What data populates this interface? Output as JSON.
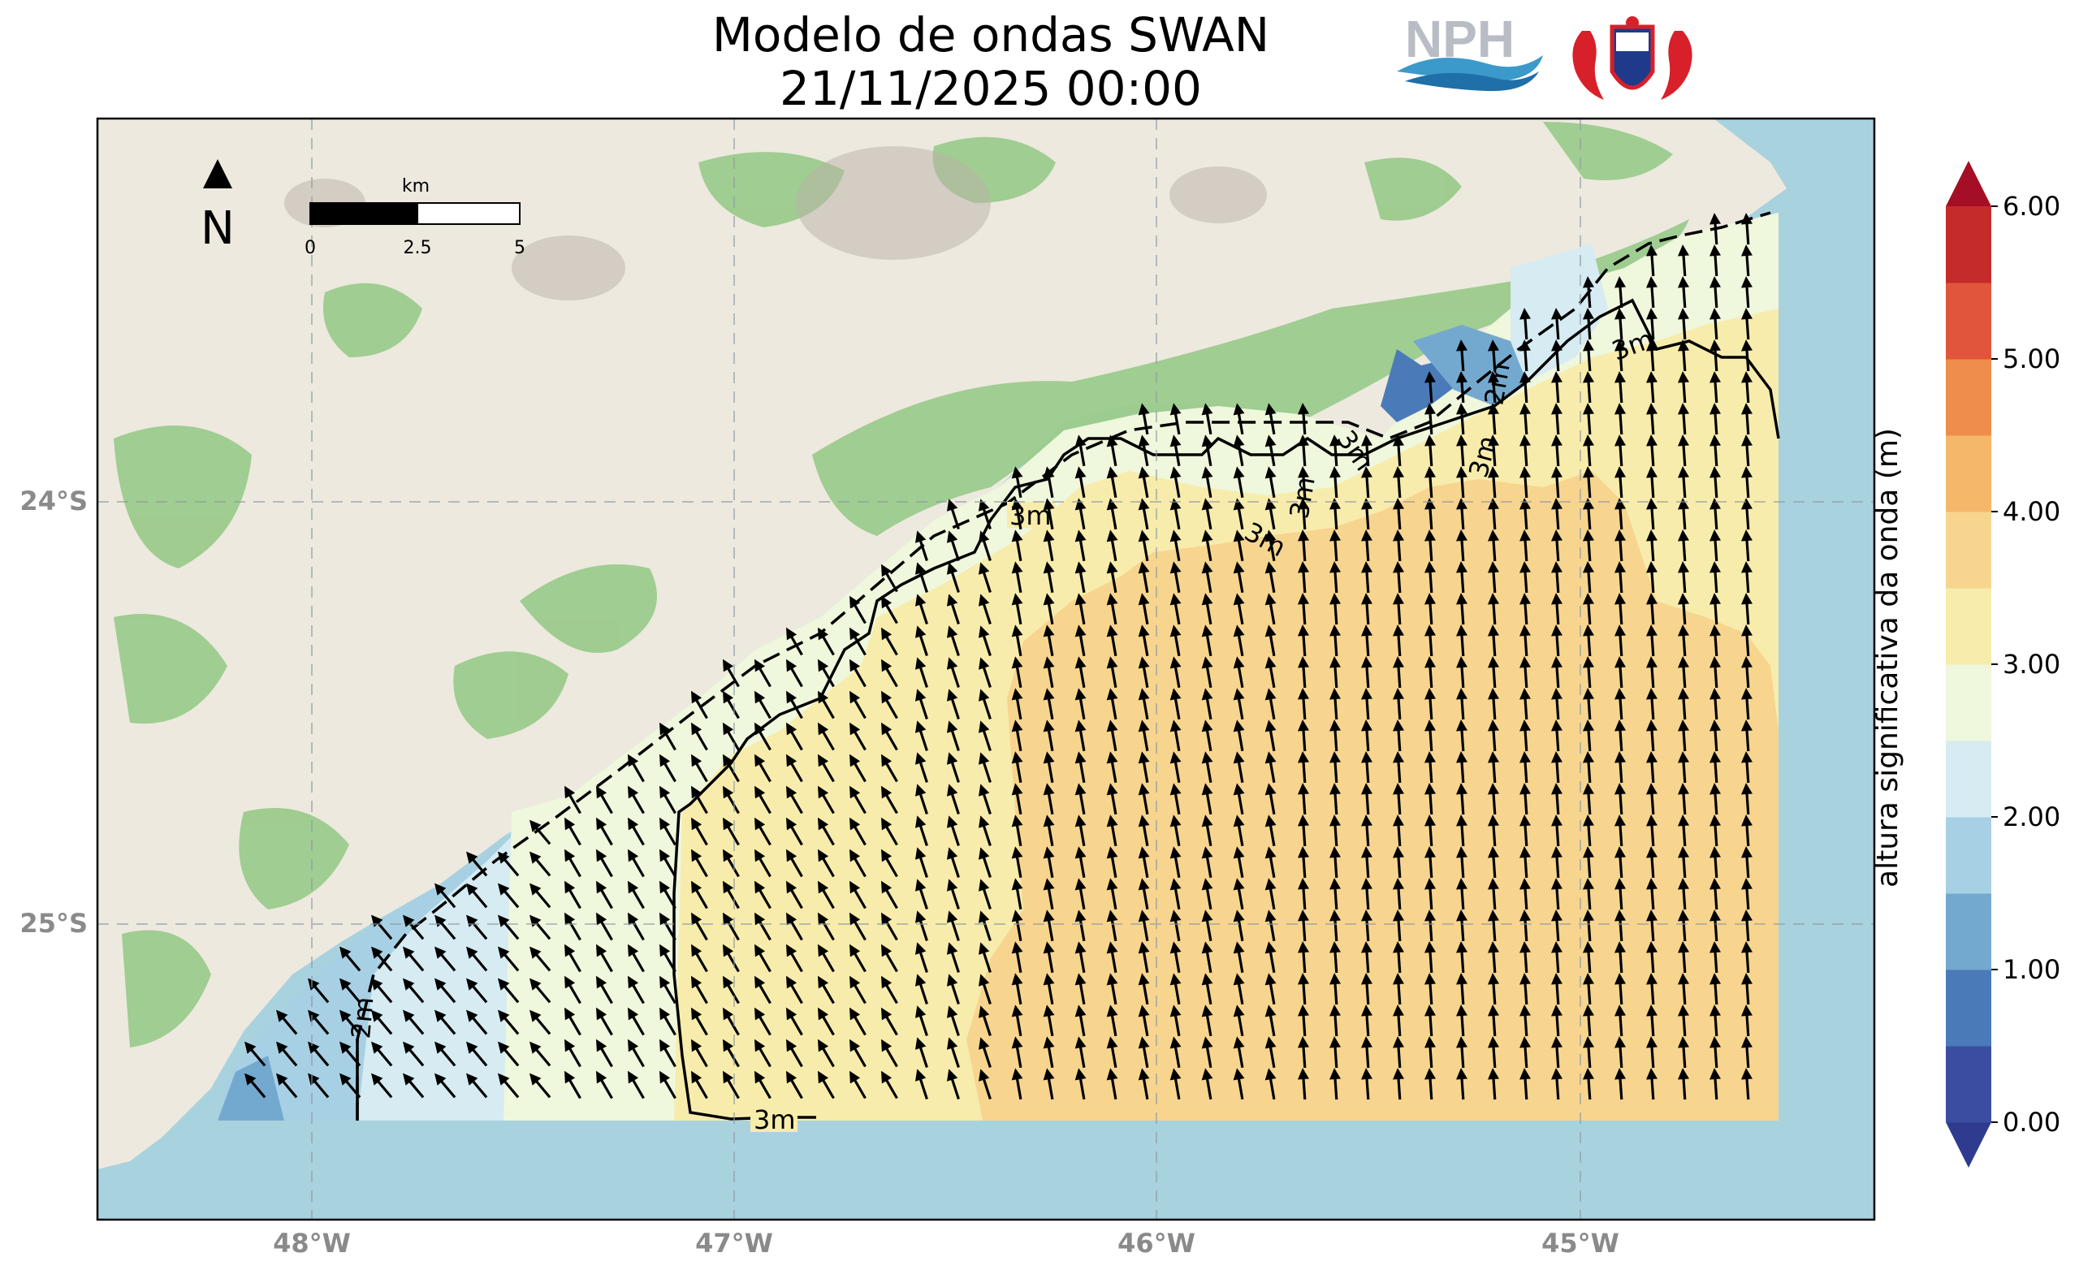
{
  "title": {
    "line1": "Modelo de ondas SWAN",
    "line2": "21/11/2025 00:00"
  },
  "logos": [
    {
      "name": "nph-logo",
      "text": "NPH"
    },
    {
      "name": "seahorse-crest-logo"
    }
  ],
  "north_arrow": {
    "label": "N"
  },
  "scale_bar": {
    "unit": "km",
    "ticks": [
      "0",
      "2.5",
      "5"
    ]
  },
  "axes": {
    "x_ticks": [
      "48°W",
      "47°W",
      "46°W",
      "45°W"
    ],
    "y_ticks": [
      "24°S",
      "25°S"
    ],
    "grid": true,
    "grid_style": "dashed"
  },
  "contour_labels": [
    "3m",
    "3m",
    "3m",
    "3m",
    "3m",
    "3m",
    "2m",
    "2m",
    "3m"
  ],
  "colorbar": {
    "label": "altura significativa da onda (m)",
    "ticks": [
      "0.00",
      "1.00",
      "2.00",
      "3.00",
      "4.00",
      "5.00",
      "6.00"
    ],
    "colors": [
      "#3b4da0",
      "#4a7ab8",
      "#74a9cf",
      "#a7d0e4",
      "#d6ebf2",
      "#eff7dc",
      "#f7ecab",
      "#f7d58f",
      "#f5b86a",
      "#ef8d4a",
      "#e0553b",
      "#c42c2b"
    ],
    "range": [
      0,
      6
    ]
  },
  "map_colors": {
    "ocean": "#a9d2df",
    "land": "#ede9df",
    "forest": "#9ccb8c"
  },
  "wave_field": {
    "dominant_direction": "north to north-northwest",
    "zones": [
      {
        "name": "nearshore-southwest",
        "height_range_m": [
          1.5,
          2.5
        ]
      },
      {
        "name": "coastal-band",
        "height_range_m": [
          2.5,
          3.0
        ]
      },
      {
        "name": "mid-shelf",
        "height_range_m": [
          3.0,
          3.5
        ]
      },
      {
        "name": "offshore",
        "height_range_m": [
          3.5,
          4.0
        ]
      }
    ]
  }
}
